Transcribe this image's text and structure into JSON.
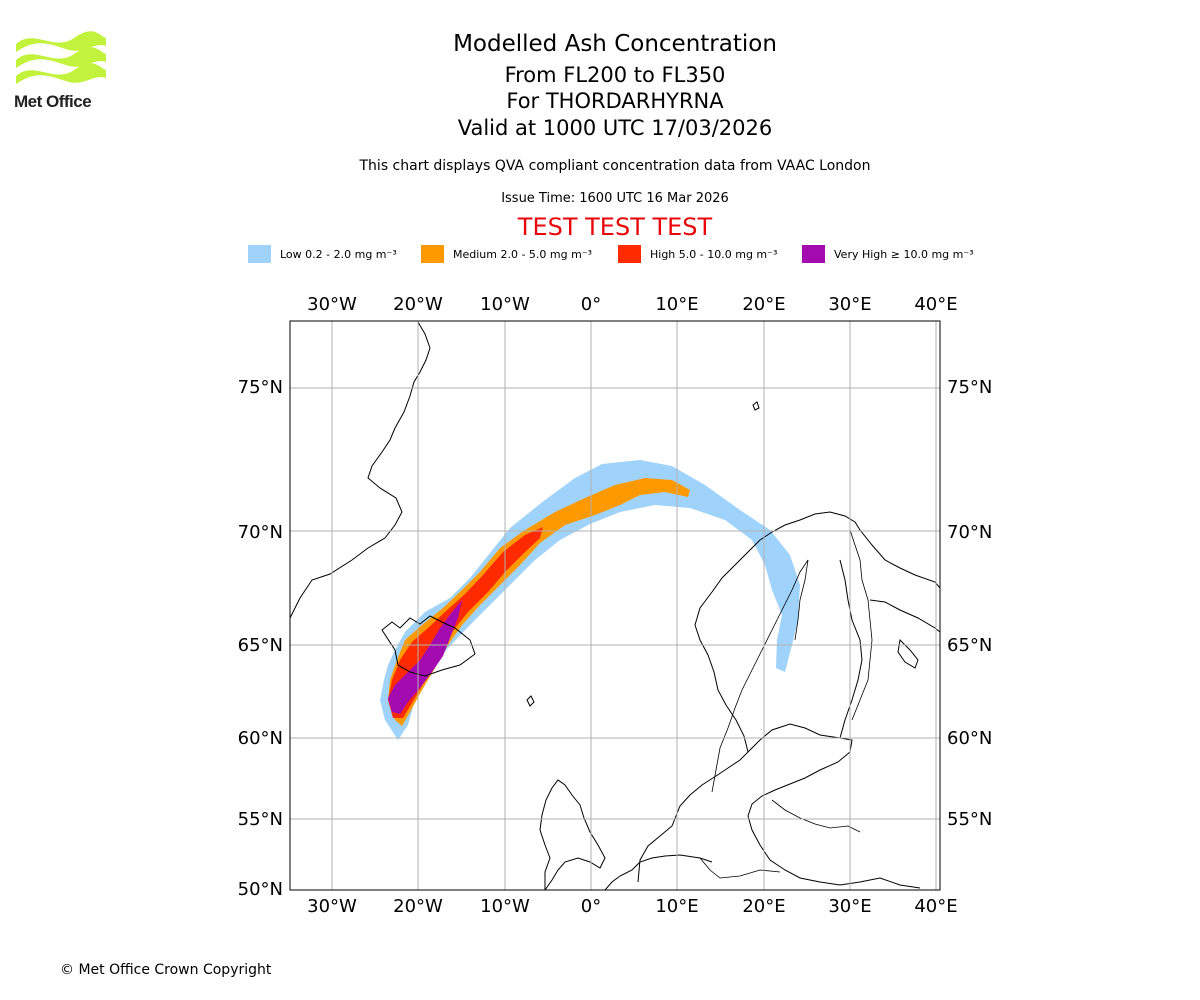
{
  "logo": {
    "text": "Met Office",
    "color": "#c3f23c"
  },
  "title": {
    "main": "Modelled Ash Concentration",
    "levels": "From FL200 to FL350",
    "volcano": "For THORDARHYRNA",
    "valid": "Valid at 1000 UTC 17/03/2026"
  },
  "subtitle": "This chart displays QVA compliant concentration data from VAAC London",
  "issue_time": "Issue Time: 1600 UTC 16 Mar 2026",
  "test_banner": "TEST TEST TEST",
  "legend": [
    {
      "label": "Low 0.2 - 2.0 mg m⁻³",
      "color": "#9fd3fb"
    },
    {
      "label": "Medium 2.0 - 5.0 mg m⁻³",
      "color": "#ff9900"
    },
    {
      "label": "High 5.0 - 10.0 mg m⁻³",
      "color": "#ff2a00"
    },
    {
      "label": "Very High ≥ 10.0 mg m⁻³",
      "color": "#a30bb0"
    }
  ],
  "map": {
    "projection": "Stereographic",
    "lon_ticks": [
      "30°W",
      "20°W",
      "10°W",
      "0°",
      "10°E",
      "20°E",
      "30°E",
      "40°E"
    ],
    "lat_ticks": [
      "75°N",
      "70°N",
      "65°N",
      "60°N",
      "55°N",
      "50°N"
    ]
  },
  "copyright": "© Met Office Crown Copyright"
}
